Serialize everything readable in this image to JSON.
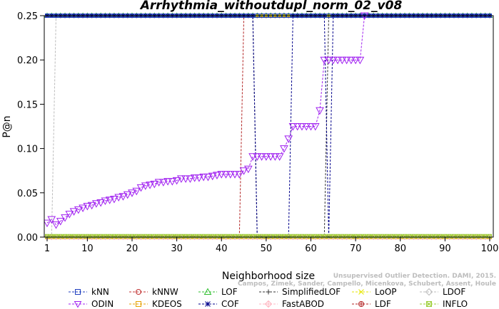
{
  "chart_data": {
    "type": "line",
    "title": "Arrhythmia_withoutdupl_norm_02_v08",
    "xlabel": "Neighborhood size",
    "ylabel": "P@n",
    "xlim": [
      1,
      100
    ],
    "ylim": [
      0,
      0.25
    ],
    "x_ticks": [
      1,
      10,
      20,
      30,
      40,
      50,
      60,
      70,
      80,
      90,
      100
    ],
    "y_ticks": [
      "0.00",
      "0.05",
      "0.10",
      "0.15",
      "0.20",
      "0.25"
    ],
    "grid": false,
    "legend_position": "bottom",
    "watermark": "Campos, Zimek, Sander, Campello, Micenkova, Schubert, Assent, Houle",
    "watermark2": "Unsupervised Outlier Detection. DAMI, 2015.",
    "series": [
      {
        "name": "kNN",
        "color": "#1f3fbf",
        "marker": "square",
        "x": [
          1,
          100
        ],
        "y": [
          0.25,
          0.25
        ]
      },
      {
        "name": "kNNW",
        "color": "#c03030",
        "marker": "circle",
        "x": [
          1,
          100
        ],
        "y": [
          0.25,
          0.25
        ]
      },
      {
        "name": "LOF",
        "color": "#2fbf2f",
        "marker": "triangle-up",
        "x": [
          1,
          100
        ],
        "y": [
          0.25,
          0.25
        ]
      },
      {
        "name": "SimplifiedLOF",
        "color": "#333333",
        "marker": "plus",
        "x": [
          1,
          47,
          48,
          63,
          64,
          100
        ],
        "y": [
          0.25,
          0.25,
          0.0,
          0.0,
          0.25,
          0.25
        ]
      },
      {
        "name": "LoOP",
        "color": "#e6e600",
        "marker": "x",
        "x": [
          1,
          100
        ],
        "y": [
          0.25,
          0.25
        ]
      },
      {
        "name": "LDOF",
        "color": "#bbbbbb",
        "marker": "diamond",
        "x": [
          1,
          2,
          3,
          4,
          100
        ],
        "y": [
          0.0,
          0.0,
          0.25,
          0.25,
          0.25
        ]
      },
      {
        "name": "ODIN",
        "color": "#a020f0",
        "marker": "triangle-down",
        "x": [
          1,
          2,
          3,
          4,
          5,
          6,
          7,
          8,
          9,
          10,
          11,
          12,
          13,
          14,
          15,
          16,
          17,
          18,
          19,
          20,
          21,
          22,
          23,
          24,
          25,
          26,
          27,
          28,
          29,
          30,
          31,
          32,
          33,
          34,
          35,
          36,
          37,
          38,
          39,
          40,
          41,
          42,
          43,
          44,
          45,
          46,
          47,
          48,
          49,
          50,
          51,
          52,
          53,
          54,
          55,
          56,
          57,
          58,
          59,
          60,
          61,
          62,
          63,
          64,
          65,
          66,
          67,
          68,
          69,
          70,
          71,
          72
        ],
        "y": [
          0.016,
          0.02,
          0.014,
          0.018,
          0.022,
          0.026,
          0.029,
          0.031,
          0.033,
          0.035,
          0.036,
          0.038,
          0.039,
          0.041,
          0.042,
          0.043,
          0.045,
          0.046,
          0.048,
          0.05,
          0.052,
          0.056,
          0.058,
          0.059,
          0.06,
          0.062,
          0.062,
          0.063,
          0.063,
          0.064,
          0.066,
          0.066,
          0.066,
          0.067,
          0.067,
          0.068,
          0.068,
          0.069,
          0.07,
          0.071,
          0.071,
          0.071,
          0.071,
          0.071,
          0.075,
          0.077,
          0.091,
          0.091,
          0.091,
          0.091,
          0.091,
          0.091,
          0.091,
          0.1,
          0.111,
          0.125,
          0.125,
          0.125,
          0.125,
          0.125,
          0.125,
          0.143,
          0.2,
          0.2,
          0.2,
          0.2,
          0.2,
          0.2,
          0.2,
          0.2,
          0.2,
          0.25
        ]
      },
      {
        "name": "KDEOS",
        "color": "#e6a000",
        "marker": "square",
        "x": [
          1,
          100
        ],
        "y": [
          0.0,
          0.0
        ]
      },
      {
        "name": "COF",
        "color": "#00008b",
        "marker": "asterisk",
        "x": [
          1,
          47,
          48,
          55,
          56,
          62,
          63,
          64,
          65,
          100
        ],
        "y": [
          0.25,
          0.25,
          0.0,
          0.0,
          0.25,
          0.25,
          0.25,
          0.0,
          0.25,
          0.25
        ]
      },
      {
        "name": "FastABOD",
        "color": "#ffb6c1",
        "marker": "diamond-plus",
        "x": [
          1,
          100
        ],
        "y": [
          0.0,
          0.0
        ]
      },
      {
        "name": "LDF",
        "color": "#b22222",
        "marker": "circle-plus",
        "x": [
          1,
          44,
          45,
          71,
          72,
          100
        ],
        "y": [
          0.0,
          0.0,
          0.25,
          0.25,
          0.25,
          0.25
        ]
      },
      {
        "name": "INFLO",
        "color": "#9acd32",
        "marker": "square-x",
        "x": [
          1,
          100
        ],
        "y": [
          0.001,
          0.001
        ]
      }
    ]
  }
}
